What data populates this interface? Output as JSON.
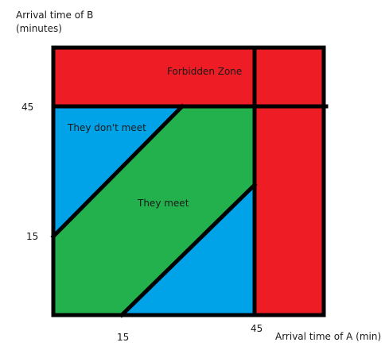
{
  "y_axis": {
    "label_line1": "Arrival time of B",
    "label_line2": "(minutes)"
  },
  "x_axis": {
    "label": "Arrival time of A (min)"
  },
  "ticks": {
    "y_45": "45",
    "y_15": "15",
    "x_15": "15",
    "x_45": "45"
  },
  "regions": {
    "forbidden": {
      "label": "Forbidden Zone",
      "color": "#ee1c24"
    },
    "meet": {
      "label": "They meet",
      "color": "#22b14c"
    },
    "dont_meet": {
      "label": "They don't meet",
      "color": "#00a2e8"
    }
  },
  "line_color": "#000000"
}
